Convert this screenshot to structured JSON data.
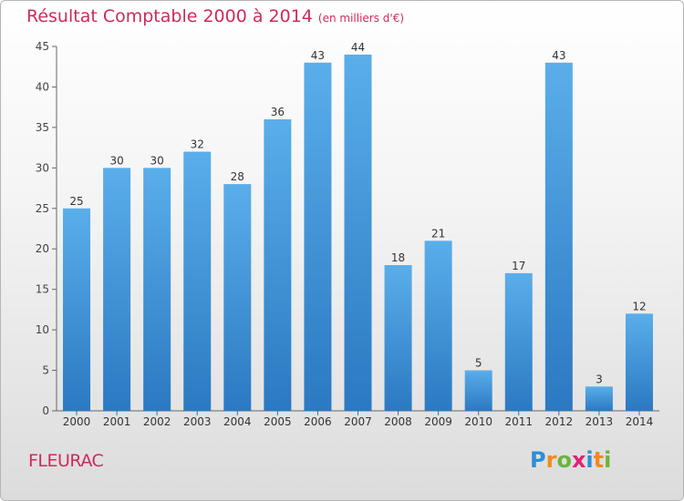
{
  "chart_data": {
    "type": "bar",
    "title": "Résultat Comptable 2000 à 2014",
    "subtitle": "(en milliers d'€)",
    "categories": [
      "2000",
      "2001",
      "2002",
      "2003",
      "2004",
      "2005",
      "2006",
      "2007",
      "2008",
      "2009",
      "2010",
      "2011",
      "2012",
      "2013",
      "2014"
    ],
    "values": [
      25,
      30,
      30,
      32,
      28,
      36,
      43,
      44,
      18,
      21,
      5,
      17,
      43,
      3,
      12
    ],
    "ylim": [
      0,
      45
    ],
    "yticks": [
      0,
      5,
      10,
      15,
      20,
      25,
      30,
      35,
      40,
      45
    ],
    "grid": false,
    "bar_color": "#3a8fd8",
    "xlabel": "",
    "ylabel": ""
  },
  "commune": "FLEURAC",
  "logo": {
    "text": "Proxiti",
    "letter_colors": [
      "#2e8fd6",
      "#f08a1c",
      "#6cb33f",
      "#e0217a",
      "#2e8fd6",
      "#f08a1c",
      "#6cb33f"
    ]
  },
  "colors": {
    "title": "#cf2a5a",
    "axis": "#555555",
    "label": "#333333"
  }
}
